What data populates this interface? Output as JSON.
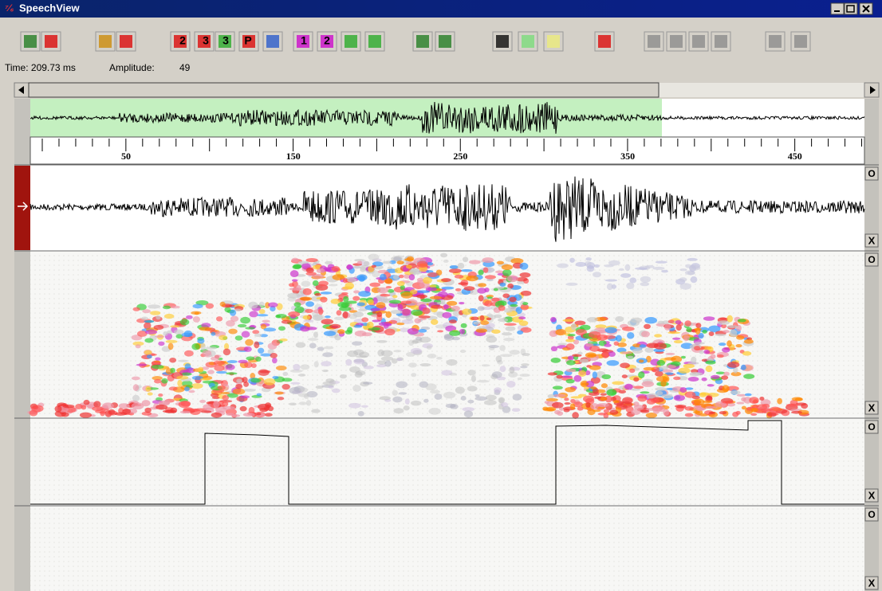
{
  "window": {
    "title": "SpeechView"
  },
  "toolbar": {
    "digits": [
      "2",
      "3",
      "3",
      "P",
      "1",
      "2"
    ]
  },
  "status": {
    "time": "Time: 209.73 ms",
    "amplitude_label": "Amplitude:",
    "amplitude": "49"
  },
  "ruler": {
    "labels": [
      "50",
      "150",
      "250",
      "350",
      "450"
    ]
  },
  "panel_buttons": {
    "open": "O",
    "close": "X"
  }
}
